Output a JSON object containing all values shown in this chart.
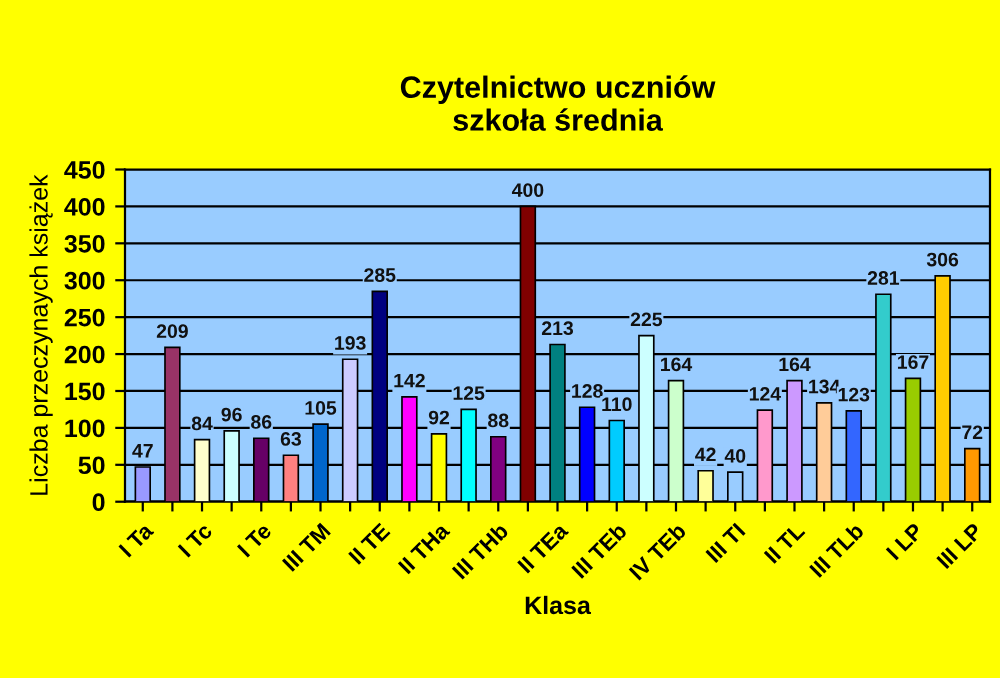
{
  "chart_data": {
    "type": "bar",
    "title": "Czytelnictwo uczniów\nszkoła średnia",
    "xlabel": "Klasa",
    "ylabel": "Liczba przeczynaych książek",
    "categories": [
      "I Ta",
      null,
      "I Tc",
      null,
      "I Te",
      null,
      "III TM",
      null,
      "II TE",
      null,
      "II THa",
      null,
      "III THb",
      null,
      "II TEa",
      null,
      "III TEb",
      null,
      "IV TEb",
      null,
      "III TI",
      null,
      "II TL",
      null,
      "III TLb",
      null,
      "I LP",
      null,
      "III LP"
    ],
    "values": [
      47,
      209,
      84,
      96,
      86,
      63,
      105,
      193,
      285,
      142,
      92,
      125,
      88,
      400,
      213,
      128,
      110,
      225,
      164,
      42,
      40,
      124,
      164,
      134,
      123,
      281,
      167,
      306,
      72
    ],
    "colors": [
      "#9999ff",
      "#993366",
      "#ffffcc",
      "#ccffff",
      "#660066",
      "#ff8080",
      "#0066cc",
      "#ccccff",
      "#000080",
      "#ff00ff",
      "#ffff00",
      "#00ffff",
      "#800080",
      "#800000",
      "#008080",
      "#0000ff",
      "#00ccff",
      "#ccffff",
      "#ccffcc",
      "#ffff99",
      "#99ccff",
      "#ff99cc",
      "#cc99ff",
      "#ffcc99",
      "#3366ff",
      "#33cccc",
      "#99cc00",
      "#ffcc00",
      "#ff9900"
    ],
    "ylim": [
      0,
      450
    ],
    "yticks": [
      0,
      50,
      100,
      150,
      200,
      250,
      300,
      350,
      400,
      450
    ],
    "grid": "y",
    "data_labels": true,
    "legend": false
  }
}
